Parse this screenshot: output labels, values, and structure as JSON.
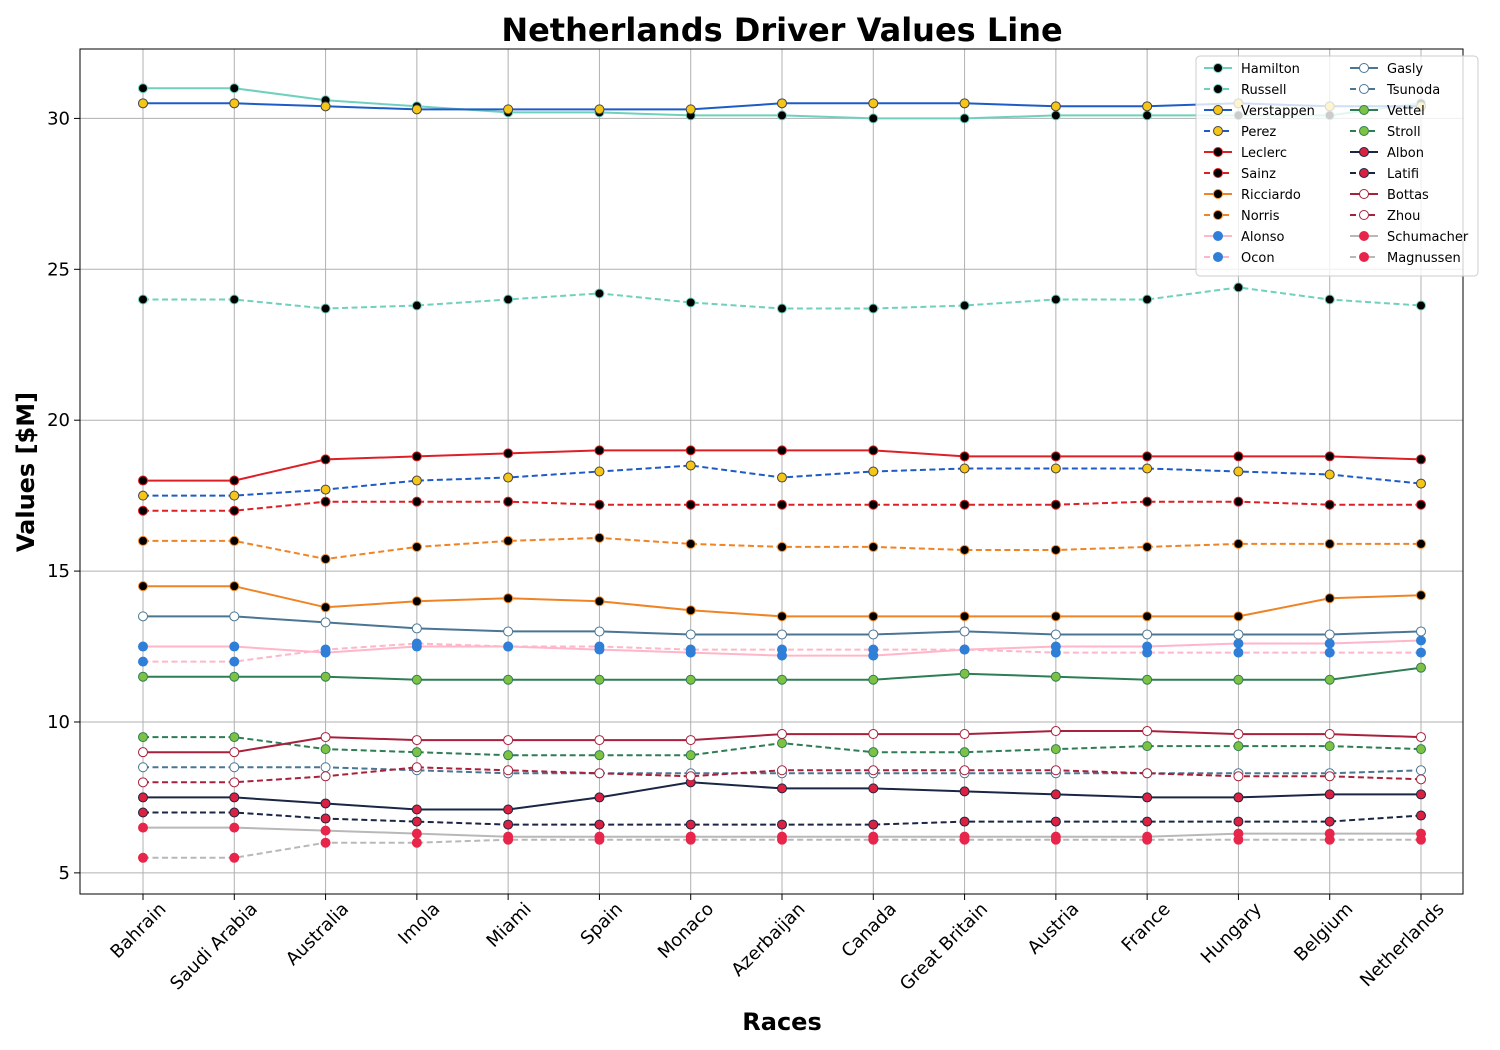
{
  "chart_data": {
    "type": "line",
    "title": "Netherlands Driver Values Line",
    "xlabel": "Races",
    "ylabel": "Values [$M]",
    "categories": [
      "Bahrain",
      "Saudi Arabia",
      "Australia",
      "Imola",
      "Miami",
      "Spain",
      "Monaco",
      "Azerbaijan",
      "Canada",
      "Great Britain",
      "Austria",
      "France",
      "Hungary",
      "Belgium",
      "Netherlands"
    ],
    "ylim": [
      4.3,
      32.3
    ],
    "yticks": [
      5,
      10,
      15,
      20,
      25,
      30
    ],
    "grid": true,
    "legend_position": "top-right",
    "series": [
      {
        "name": "Hamilton",
        "color": "#6fd1bd",
        "marker_face": "#000000",
        "marker_edge": "#6fd1bd",
        "dashed": false,
        "values": [
          31.0,
          31.0,
          30.6,
          30.4,
          30.2,
          30.2,
          30.1,
          30.1,
          30.0,
          30.0,
          30.1,
          30.1,
          30.1,
          30.1,
          30.5
        ]
      },
      {
        "name": "Russell",
        "color": "#6fd1bd",
        "marker_face": "#000000",
        "marker_edge": "#6fd1bd",
        "dashed": true,
        "values": [
          24.0,
          24.0,
          23.7,
          23.8,
          24.0,
          24.2,
          23.9,
          23.7,
          23.7,
          23.8,
          24.0,
          24.0,
          24.4,
          24.0,
          23.8
        ]
      },
      {
        "name": "Verstappen",
        "color": "#1e5bc6",
        "marker_face": "#f5c518",
        "marker_edge": "#444444",
        "dashed": false,
        "values": [
          30.5,
          30.5,
          30.4,
          30.3,
          30.3,
          30.3,
          30.3,
          30.5,
          30.5,
          30.5,
          30.4,
          30.4,
          30.5,
          30.4,
          30.4
        ]
      },
      {
        "name": "Perez",
        "color": "#1e5bc6",
        "marker_face": "#f5c518",
        "marker_edge": "#444444",
        "dashed": true,
        "values": [
          17.5,
          17.5,
          17.7,
          18.0,
          18.1,
          18.3,
          18.5,
          18.1,
          18.3,
          18.4,
          18.4,
          18.4,
          18.3,
          18.2,
          17.9
        ]
      },
      {
        "name": "Leclerc",
        "color": "#dc2026",
        "marker_face": "#000000",
        "marker_edge": "#dc2026",
        "dashed": false,
        "values": [
          18.0,
          18.0,
          18.7,
          18.8,
          18.9,
          19.0,
          19.0,
          19.0,
          19.0,
          18.8,
          18.8,
          18.8,
          18.8,
          18.8,
          18.7
        ]
      },
      {
        "name": "Sainz",
        "color": "#dc2026",
        "marker_face": "#000000",
        "marker_edge": "#dc2026",
        "dashed": true,
        "values": [
          17.0,
          17.0,
          17.3,
          17.3,
          17.3,
          17.2,
          17.2,
          17.2,
          17.2,
          17.2,
          17.2,
          17.3,
          17.3,
          17.2,
          17.2
        ]
      },
      {
        "name": "Ricciardo",
        "color": "#ef8426",
        "marker_face": "#000000",
        "marker_edge": "#ef8426",
        "dashed": false,
        "values": [
          14.5,
          14.5,
          13.8,
          14.0,
          14.1,
          14.0,
          13.7,
          13.5,
          13.5,
          13.5,
          13.5,
          13.5,
          13.5,
          14.1,
          14.2
        ]
      },
      {
        "name": "Norris",
        "color": "#ef8426",
        "marker_face": "#000000",
        "marker_edge": "#ef8426",
        "dashed": true,
        "values": [
          16.0,
          16.0,
          15.4,
          15.8,
          16.0,
          16.1,
          15.9,
          15.8,
          15.8,
          15.7,
          15.7,
          15.8,
          15.9,
          15.9,
          15.9
        ]
      },
      {
        "name": "Alonso",
        "color": "#ffb6c8",
        "marker_face": "#2f7fd8",
        "marker_edge": "#2f7fd8",
        "dashed": false,
        "values": [
          12.5,
          12.5,
          12.3,
          12.5,
          12.5,
          12.4,
          12.3,
          12.2,
          12.2,
          12.4,
          12.5,
          12.5,
          12.6,
          12.6,
          12.7
        ]
      },
      {
        "name": "Ocon",
        "color": "#ffb6c8",
        "marker_face": "#2f7fd8",
        "marker_edge": "#2f7fd8",
        "dashed": true,
        "values": [
          12.0,
          12.0,
          12.4,
          12.6,
          12.5,
          12.5,
          12.4,
          12.4,
          12.4,
          12.4,
          12.3,
          12.3,
          12.3,
          12.3,
          12.3
        ]
      },
      {
        "name": "Gasly",
        "color": "#4a7694",
        "marker_face": "#ffffff",
        "marker_edge": "#4a7694",
        "dashed": false,
        "values": [
          13.5,
          13.5,
          13.3,
          13.1,
          13.0,
          13.0,
          12.9,
          12.9,
          12.9,
          13.0,
          12.9,
          12.9,
          12.9,
          12.9,
          13.0
        ]
      },
      {
        "name": "Tsunoda",
        "color": "#4a7694",
        "marker_face": "#ffffff",
        "marker_edge": "#4a7694",
        "dashed": true,
        "values": [
          8.5,
          8.5,
          8.5,
          8.4,
          8.3,
          8.3,
          8.3,
          8.3,
          8.3,
          8.3,
          8.3,
          8.3,
          8.3,
          8.3,
          8.4
        ]
      },
      {
        "name": "Vettel",
        "color": "#2e7d55",
        "marker_face": "#7dc242",
        "marker_edge": "#2e7d55",
        "dashed": false,
        "values": [
          11.5,
          11.5,
          11.5,
          11.4,
          11.4,
          11.4,
          11.4,
          11.4,
          11.4,
          11.6,
          11.5,
          11.4,
          11.4,
          11.4,
          11.8
        ]
      },
      {
        "name": "Stroll",
        "color": "#2e7d55",
        "marker_face": "#7dc242",
        "marker_edge": "#2e7d55",
        "dashed": true,
        "values": [
          9.5,
          9.5,
          9.1,
          9.0,
          8.9,
          8.9,
          8.9,
          9.3,
          9.0,
          9.0,
          9.1,
          9.2,
          9.2,
          9.2,
          9.1
        ]
      },
      {
        "name": "Albon",
        "color": "#1a2744",
        "marker_face": "#dc2040",
        "marker_edge": "#1a2744",
        "dashed": false,
        "values": [
          7.5,
          7.5,
          7.3,
          7.1,
          7.1,
          7.5,
          8.0,
          7.8,
          7.8,
          7.7,
          7.6,
          7.5,
          7.5,
          7.6,
          7.6
        ]
      },
      {
        "name": "Latifi",
        "color": "#1a2744",
        "marker_face": "#dc2040",
        "marker_edge": "#1a2744",
        "dashed": true,
        "values": [
          7.0,
          7.0,
          6.8,
          6.7,
          6.6,
          6.6,
          6.6,
          6.6,
          6.6,
          6.7,
          6.7,
          6.7,
          6.7,
          6.7,
          6.9
        ]
      },
      {
        "name": "Bottas",
        "color": "#a8213c",
        "marker_face": "#ffffff",
        "marker_edge": "#a8213c",
        "dashed": false,
        "values": [
          9.0,
          9.0,
          9.5,
          9.4,
          9.4,
          9.4,
          9.4,
          9.6,
          9.6,
          9.6,
          9.7,
          9.7,
          9.6,
          9.6,
          9.5
        ]
      },
      {
        "name": "Zhou",
        "color": "#a8213c",
        "marker_face": "#ffffff",
        "marker_edge": "#a8213c",
        "dashed": true,
        "values": [
          8.0,
          8.0,
          8.2,
          8.5,
          8.4,
          8.3,
          8.2,
          8.4,
          8.4,
          8.4,
          8.4,
          8.3,
          8.2,
          8.2,
          8.1
        ]
      },
      {
        "name": "Schumacher",
        "color": "#b8b8b8",
        "marker_face": "#e8254a",
        "marker_edge": "#e8254a",
        "dashed": false,
        "values": [
          6.5,
          6.5,
          6.4,
          6.3,
          6.2,
          6.2,
          6.2,
          6.2,
          6.2,
          6.2,
          6.2,
          6.2,
          6.3,
          6.3,
          6.3
        ]
      },
      {
        "name": "Magnussen",
        "color": "#b8b8b8",
        "marker_face": "#e8254a",
        "marker_edge": "#e8254a",
        "dashed": true,
        "values": [
          5.5,
          5.5,
          6.0,
          6.0,
          6.1,
          6.1,
          6.1,
          6.1,
          6.1,
          6.1,
          6.1,
          6.1,
          6.1,
          6.1,
          6.1
        ]
      }
    ]
  }
}
